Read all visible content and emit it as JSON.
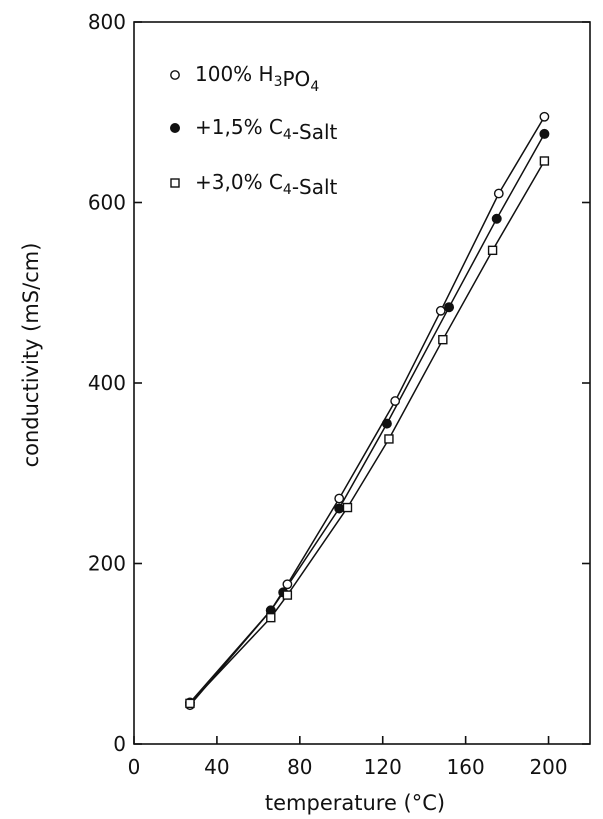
{
  "chart_data": {
    "type": "line",
    "title": "",
    "xlabel": "temperature (°C)",
    "ylabel": "conductivity (mS/cm)",
    "xlim": [
      0,
      220
    ],
    "ylim": [
      0,
      800
    ],
    "xticks": [
      0,
      40,
      80,
      120,
      160,
      200
    ],
    "yticks": [
      0,
      200,
      400,
      600,
      800
    ],
    "grid": false,
    "legend_position": "top-left",
    "series": [
      {
        "name": "100% H3PO4",
        "name_parts": {
          "pre": "100% H",
          "sub1": "3",
          "mid": "PO",
          "sub2": "4",
          "post": ""
        },
        "marker": "open-circle",
        "x": [
          27,
          66,
          74,
          99,
          126,
          148,
          176,
          198
        ],
        "y": [
          43,
          148,
          177,
          272,
          380,
          480,
          610,
          695
        ]
      },
      {
        "name": "+1,5% C4-Salt",
        "name_parts": {
          "pre": "+1,5% C",
          "sub1": "4",
          "mid": "-Salt",
          "sub2": "",
          "post": ""
        },
        "marker": "filled-circle",
        "x": [
          27,
          66,
          72,
          99,
          122,
          152,
          175,
          198
        ],
        "y": [
          46,
          148,
          168,
          261,
          355,
          484,
          582,
          676
        ]
      },
      {
        "name": "+3,0% C4-Salt",
        "name_parts": {
          "pre": "+3,0% C",
          "sub1": "4",
          "mid": "-Salt",
          "sub2": "",
          "post": ""
        },
        "marker": "open-square",
        "x": [
          27,
          66,
          74,
          103,
          123,
          149,
          173,
          198
        ],
        "y": [
          45,
          140,
          165,
          262,
          338,
          448,
          547,
          646
        ]
      }
    ]
  }
}
